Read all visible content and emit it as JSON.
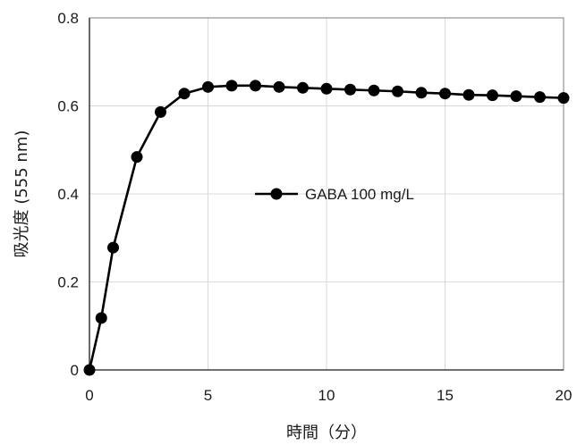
{
  "chart_data": {
    "type": "line",
    "title": "",
    "xlabel": "時間（分）",
    "ylabel": "吸光度 (555 nm)",
    "xlim": [
      0,
      20
    ],
    "ylim": [
      0,
      0.8
    ],
    "x_ticks": [
      0,
      5,
      10,
      15,
      20
    ],
    "y_ticks": [
      0,
      0.2,
      0.4,
      0.6,
      0.8
    ],
    "x_tick_labels": [
      "0",
      "5",
      "10",
      "15",
      "20"
    ],
    "y_tick_labels": [
      "0",
      "0.2",
      "0.4",
      "0.6",
      "0.8"
    ],
    "grid": true,
    "legend_position": "center",
    "series": [
      {
        "name": "GABA 100 mg/L",
        "color": "#000000",
        "marker": "circle",
        "x": [
          0,
          0.5,
          1,
          2,
          3,
          4,
          5,
          6,
          7,
          8,
          9,
          10,
          11,
          12,
          13,
          14,
          15,
          16,
          17,
          18,
          19,
          20
        ],
        "y": [
          0.0,
          0.118,
          0.278,
          0.484,
          0.586,
          0.628,
          0.643,
          0.646,
          0.646,
          0.643,
          0.641,
          0.639,
          0.637,
          0.635,
          0.633,
          0.63,
          0.628,
          0.625,
          0.624,
          0.622,
          0.62,
          0.618
        ]
      }
    ]
  }
}
